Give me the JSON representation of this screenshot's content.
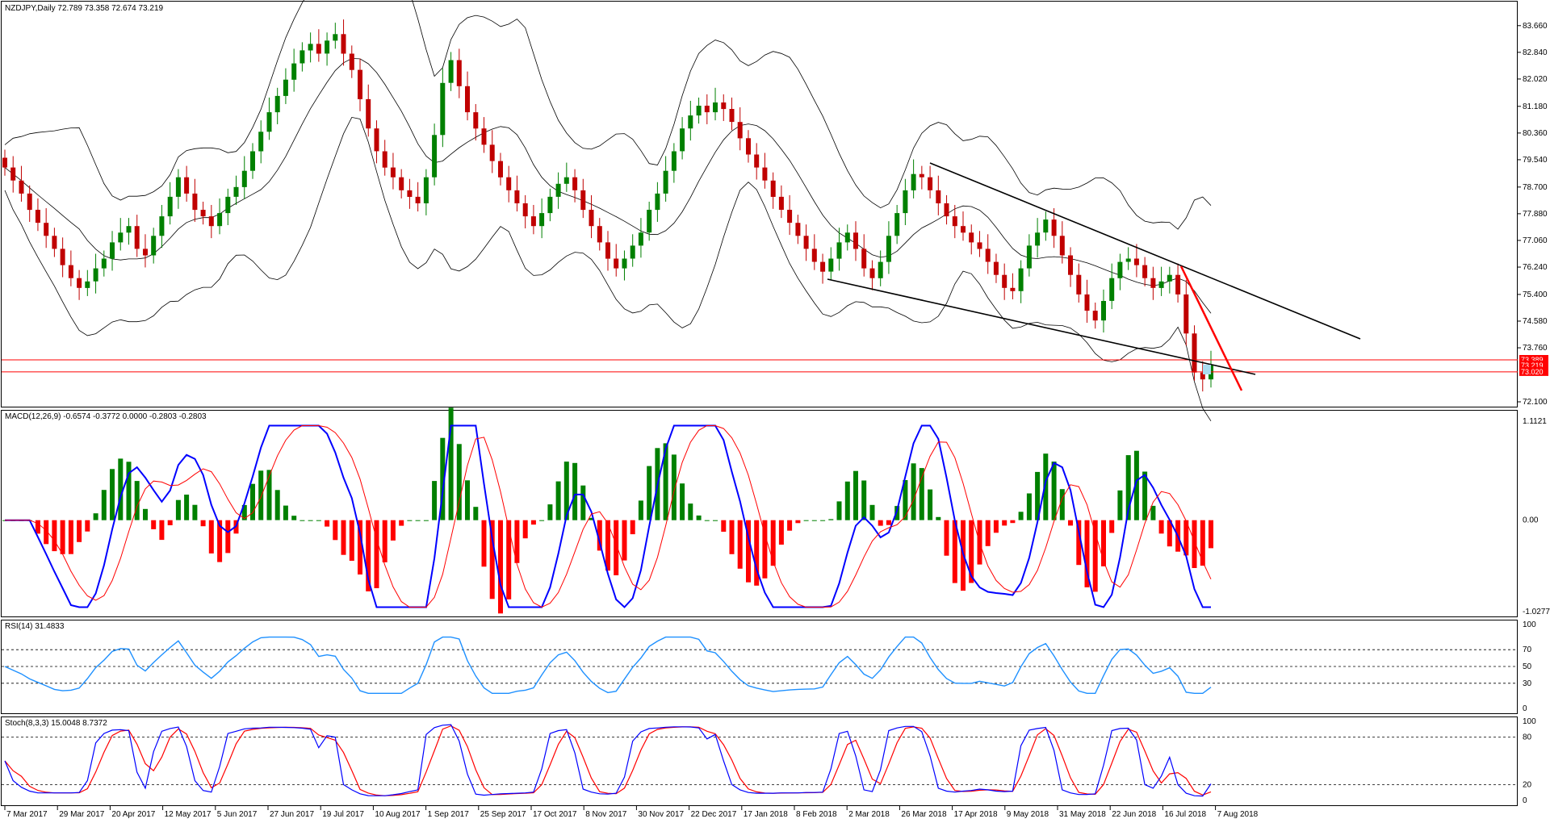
{
  "chart_data": [
    {
      "panel": "price",
      "type": "candlestick",
      "header": "NZDJPY,Daily  72.789 73.358 72.674 73.219",
      "ylim": [
        72.1,
        84.2
      ],
      "y_ticks": [
        "83.660",
        "82.840",
        "82.020",
        "81.180",
        "80.360",
        "79.540",
        "78.700",
        "77.880",
        "77.060",
        "76.240",
        "75.400",
        "74.580",
        "73.760",
        "72.100"
      ],
      "price_tags": [
        "73.389",
        "73.219",
        "73.020"
      ],
      "support_levels": [
        73.389,
        73.02
      ],
      "colors": {
        "bull": "#008000",
        "bear": "#c00000",
        "frame": "#000000",
        "level": "#ff0000",
        "tag": "#ff0000",
        "trend": "#000000",
        "red_trend": "#ff0000"
      },
      "closes": [
        79.3,
        78.9,
        78.5,
        78.0,
        77.6,
        77.2,
        76.8,
        76.3,
        75.9,
        75.6,
        75.8,
        76.2,
        76.5,
        77.0,
        77.3,
        77.5,
        76.8,
        76.6,
        77.2,
        77.8,
        78.4,
        79.0,
        78.5,
        78.0,
        77.8,
        77.5,
        77.9,
        78.4,
        78.7,
        79.2,
        79.8,
        80.4,
        81.0,
        81.5,
        82.0,
        82.5,
        82.9,
        83.1,
        82.8,
        83.2,
        83.4,
        82.8,
        82.3,
        81.4,
        80.5,
        79.8,
        79.3,
        79.0,
        78.6,
        78.4,
        78.2,
        79.0,
        80.3,
        81.9,
        82.6,
        81.8,
        81.0,
        80.5,
        80.0,
        79.5,
        79.0,
        78.6,
        78.2,
        77.8,
        77.5,
        77.9,
        78.4,
        78.8,
        79.0,
        78.6,
        78.0,
        77.5,
        77.0,
        76.5,
        76.2,
        76.5,
        76.9,
        77.3,
        78.0,
        78.5,
        79.2,
        79.8,
        80.5,
        80.9,
        81.2,
        81.0,
        81.3,
        81.1,
        80.7,
        80.2,
        79.7,
        79.3,
        78.9,
        78.4,
        78.0,
        77.6,
        77.2,
        76.8,
        76.4,
        76.1,
        76.5,
        77.0,
        77.3,
        76.8,
        76.2,
        75.9,
        76.4,
        77.2,
        77.9,
        78.6,
        79.1,
        79.0,
        78.6,
        78.2,
        77.8,
        77.5,
        77.3,
        77.0,
        76.8,
        76.4,
        76.0,
        75.6,
        75.5,
        76.2,
        76.9,
        77.3,
        77.7,
        77.2,
        76.6,
        76.0,
        75.4,
        74.9,
        74.6,
        75.2,
        75.9,
        76.4,
        76.5,
        76.3,
        75.9,
        75.6,
        75.8,
        76.0,
        75.4,
        74.2,
        73.0,
        72.789,
        73.219
      ],
      "x_ticks": [
        "7 Mar 2017",
        "29 Mar 2017",
        "20 Apr 2017",
        "12 May 2017",
        "5 Jun 2017",
        "27 Jun 2017",
        "19 Jul 2017",
        "10 Aug 2017",
        "1 Sep 2017",
        "25 Sep 2017",
        "17 Oct 2017",
        "8 Nov 2017",
        "30 Nov 2017",
        "22 Dec 2017",
        "17 Jan 2018",
        "8 Feb 2018",
        "2 Mar 2018",
        "26 Mar 2018",
        "17 Apr 2018",
        "9 May 2018",
        "31 May 2018",
        "22 Jun 2018",
        "16 Jul 2018",
        "7 Aug 2018"
      ]
    },
    {
      "panel": "macd",
      "type": "histogram+line",
      "header": "MACD(12,26,9) -0.6574 -0.3772 0.0000 -0.2803 -0.2803",
      "ylim": [
        -1.0277,
        1.1121
      ],
      "y_ticks": [
        "1.1121",
        "0.00",
        "-1.0277"
      ],
      "colors": {
        "pos": "#008000",
        "neg": "#ff0000",
        "line": "#0000ff",
        "signal": "#ff0000"
      }
    },
    {
      "panel": "rsi",
      "type": "line",
      "header": "RSI(14) 31.4833",
      "ylim": [
        0,
        100
      ],
      "y_ticks": [
        "100",
        "70",
        "50",
        "30",
        "0"
      ],
      "levels": [
        70,
        50,
        30
      ],
      "colors": {
        "line": "#1e90ff"
      }
    },
    {
      "panel": "stoch",
      "type": "line",
      "header": "Stoch(8,3,3) 15.0048 8.7372",
      "ylim": [
        0,
        100
      ],
      "y_ticks": [
        "100",
        "80",
        "20",
        "0"
      ],
      "levels": [
        80,
        20
      ],
      "colors": {
        "main": "#0000ff",
        "signal": "#ff0000"
      }
    }
  ]
}
